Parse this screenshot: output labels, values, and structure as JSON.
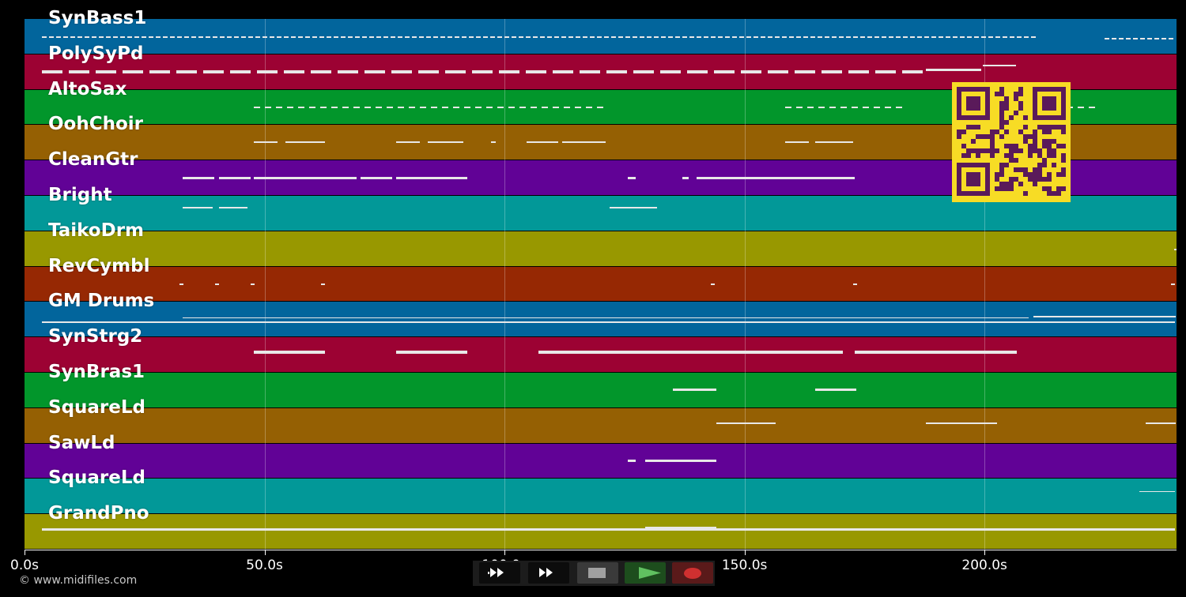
{
  "tracks": [
    {
      "name": "SynBass1",
      "color": "#02659c"
    },
    {
      "name": "PolySyPd",
      "color": "#9c0233"
    },
    {
      "name": "AltoSax",
      "color": "#02962b"
    },
    {
      "name": "OohChoir",
      "color": "#956003"
    },
    {
      "name": "CleanGtr",
      "color": "#610296"
    },
    {
      "name": "Bright",
      "color": "#029898"
    },
    {
      "name": "TaikoDrm",
      "color": "#989800"
    },
    {
      "name": "RevCymbl",
      "color": "#962803"
    },
    {
      "name": "GM Drums",
      "color": "#02659c"
    },
    {
      "name": "SynStrg2",
      "color": "#9c0233"
    },
    {
      "name": "SynBras1",
      "color": "#02962b"
    },
    {
      "name": "SquareLd",
      "color": "#956003"
    },
    {
      "name": "SawLd",
      "color": "#610296"
    },
    {
      "name": "SquareLd",
      "color": "#029898"
    },
    {
      "name": "GrandPno",
      "color": "#989800"
    }
  ],
  "timeline": {
    "max_seconds": 240,
    "ticks": [
      {
        "value": 0,
        "label": "0.0s"
      },
      {
        "value": 50,
        "label": "50.0s"
      },
      {
        "value": 100,
        "label": "100.0s"
      },
      {
        "value": 150,
        "label": "150.0s"
      },
      {
        "value": 200,
        "label": "200.0s"
      }
    ]
  },
  "transport": {
    "rewind_icon": "rewind-icon",
    "forward_icon": "fast-forward-icon",
    "stop_icon": "stop-icon",
    "play_icon": "play-icon",
    "record_icon": "record-icon"
  },
  "footer": {
    "copyright": "© www.midifiles.com"
  },
  "qr": {
    "icon": "qr-code-icon",
    "color": "#f7dc25",
    "ink": "#5a1a5a"
  }
}
